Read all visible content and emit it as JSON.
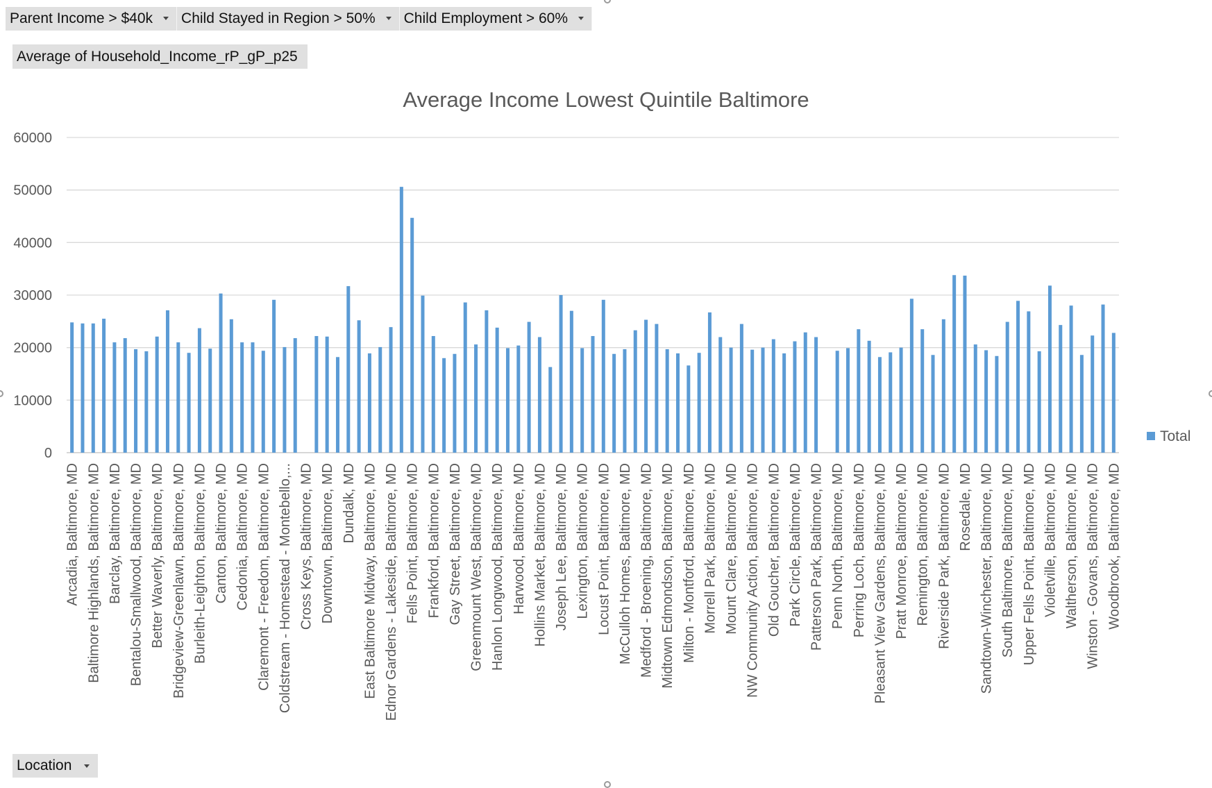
{
  "filters": [
    {
      "label": "Parent Income > $40k"
    },
    {
      "label": "Child Stayed in Region > 50%"
    },
    {
      "label": "Child Employment > 60%"
    }
  ],
  "value_field": "Average of Household_Income_rP_gP_p25",
  "axis_field": "Location",
  "colors": {
    "bar": "#5b9bd5",
    "grid": "#d9d9d9",
    "text": "#595959"
  },
  "chart_data": {
    "type": "bar",
    "title": "Average Income Lowest Quintile Baltimore",
    "xlabel": "",
    "ylabel": "",
    "ylim": [
      0,
      60000
    ],
    "yticks": [
      0,
      10000,
      20000,
      30000,
      40000,
      50000,
      60000
    ],
    "grid": true,
    "legend": {
      "placement": "right",
      "entries": [
        "Total"
      ]
    },
    "labels_every": 2,
    "categories": [
      "Arcadia, Baltimore, MD",
      "",
      "Baltimore Highlands, Baltimore, MD",
      "",
      "Barclay, Baltimore, MD",
      "",
      "Bentalou-Smallwood, Baltimore, MD",
      "",
      "Better Waverly, Baltimore, MD",
      "",
      "Bridgeview-Greenlawn, Baltimore, MD",
      "",
      "Burleith-Leighton, Baltimore, MD",
      "",
      "Canton, Baltimore, MD",
      "",
      "Cedonia, Baltimore, MD",
      "",
      "Claremont - Freedom, Baltimore, MD",
      "",
      "Coldstream - Homestead - Montebello,...",
      "",
      "Cross Keys, Baltimore, MD",
      "",
      "Downtown, Baltimore, MD",
      "",
      "Dundalk, MD",
      "",
      "East Baltimore Midway, Baltimore, MD",
      "",
      "Ednor Gardens - Lakeside, Baltimore, MD",
      "",
      "Fells Point, Baltimore, MD",
      "",
      "Frankford, Baltimore, MD",
      "",
      "Gay Street, Baltimore, MD",
      "",
      "Greenmount West, Baltimore, MD",
      "",
      "Hanlon Longwood, Baltimore, MD",
      "",
      "Harwood, Baltimore, MD",
      "",
      "Hollins Market, Baltimore, MD",
      "",
      "Joseph Lee, Baltimore, MD",
      "",
      "Lexington, Baltimore, MD",
      "",
      "Locust Point, Baltimore, MD",
      "",
      "McCulloh Homes, Baltimore, MD",
      "",
      "Medford - Broening, Baltimore, MD",
      "",
      "Midtown Edmondson, Baltimore, MD",
      "",
      "Milton - Montford, Baltimore, MD",
      "",
      "Morrell Park, Baltimore, MD",
      "",
      "Mount Clare, Baltimore, MD",
      "",
      "NW Community Action, Baltimore, MD",
      "",
      "Old Goucher, Baltimore, MD",
      "",
      "Park Circle, Baltimore, MD",
      "",
      "Patterson Park, Baltimore, MD",
      "",
      "Penn North, Baltimore, MD",
      "",
      "Perring Loch, Baltimore, MD",
      "",
      "Pleasant View Gardens, Baltimore, MD",
      "",
      "Pratt Monroe, Baltimore, MD",
      "",
      "Remington, Baltimore, MD",
      "",
      "Riverside Park, Baltimore, MD",
      "",
      "Rosedale, MD",
      "",
      "Sandtown-Winchester, Baltimore, MD",
      "",
      "South Baltimore, Baltimore, MD",
      "",
      "Upper Fells Point, Baltimore, MD",
      "",
      "Violetville, Baltimore, MD",
      "",
      "Waltherson, Baltimore, MD",
      "",
      "Winston - Govans, Baltimore, MD",
      "",
      "Woodbrook, Baltimore, MD"
    ],
    "series": [
      {
        "name": "Total",
        "values": [
          24800,
          24600,
          24600,
          25500,
          21000,
          21800,
          19700,
          19300,
          22100,
          27100,
          21000,
          19000,
          23700,
          19800,
          30300,
          25400,
          21000,
          21000,
          19400,
          29100,
          20100,
          21800,
          null,
          22200,
          22100,
          18200,
          31700,
          25200,
          18900,
          20100,
          23900,
          50600,
          44700,
          29900,
          22200,
          18000,
          18800,
          28600,
          20600,
          27100,
          23800,
          19900,
          20400,
          24900,
          22000,
          16300,
          30000,
          27000,
          19900,
          22200,
          29100,
          18800,
          19700,
          23300,
          25300,
          24500,
          19700,
          18900,
          16600,
          19000,
          26700,
          22000,
          20000,
          24500,
          19600,
          20000,
          21600,
          18900,
          21200,
          22900,
          22000,
          null,
          19400,
          19900,
          23500,
          21300,
          18200,
          19100,
          20000,
          29300,
          23500,
          18600,
          25400,
          33800,
          33700,
          20600,
          19500,
          18400,
          24900,
          28900,
          26900,
          19300,
          31800,
          24300,
          28000,
          18600,
          22300,
          28200,
          22800
        ]
      }
    ]
  }
}
